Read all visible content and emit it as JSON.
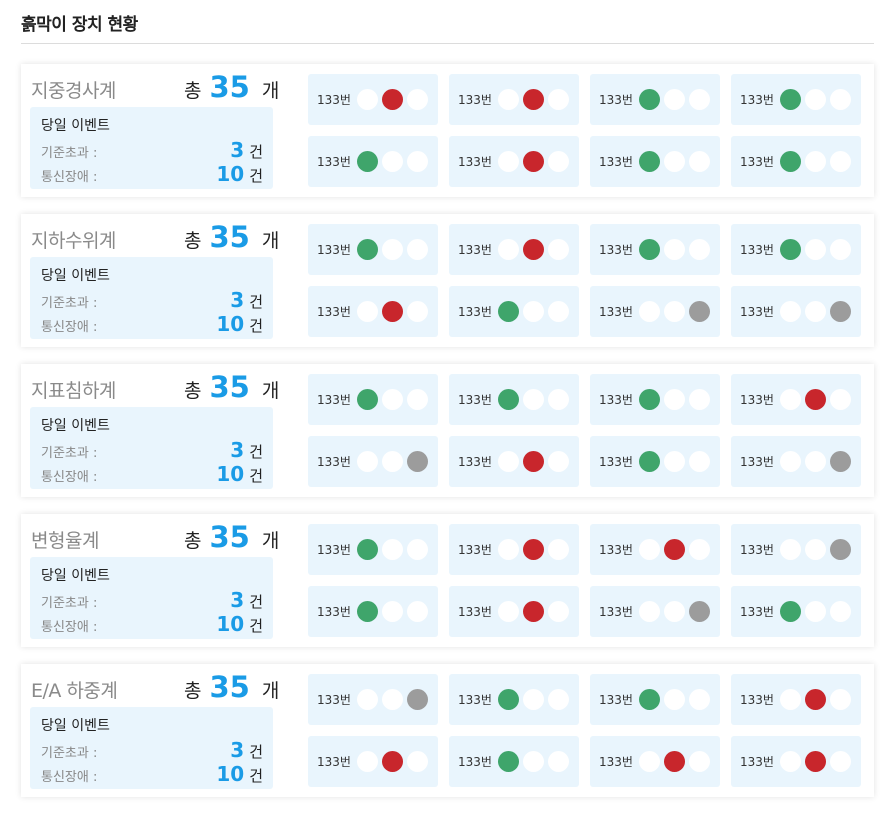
{
  "page_title": "흙막이 장치 현황",
  "status_colors": {
    "green": "#3fa56b",
    "red": "#c8262c",
    "gray": "#9c9c9c",
    "accent": "#1a9be6"
  },
  "groups": [
    {
      "name": "지중경사계",
      "total_label": "총",
      "total": "35",
      "unit": "개",
      "events": {
        "title": "당일 이벤트",
        "exceed_label": "기준초과 :",
        "exceed": "3",
        "fault_label": "통신장애 :",
        "fault": "10",
        "count_unit": "건"
      },
      "devices": [
        {
          "label": "133번",
          "lights": [
            "off",
            "red",
            "off"
          ]
        },
        {
          "label": "133번",
          "lights": [
            "off",
            "red",
            "off"
          ]
        },
        {
          "label": "133번",
          "lights": [
            "green",
            "off",
            "off"
          ]
        },
        {
          "label": "133번",
          "lights": [
            "green",
            "off",
            "off"
          ]
        },
        {
          "label": "133번",
          "lights": [
            "green",
            "off",
            "off"
          ]
        },
        {
          "label": "133번",
          "lights": [
            "off",
            "red",
            "off"
          ]
        },
        {
          "label": "133번",
          "lights": [
            "green",
            "off",
            "off"
          ]
        },
        {
          "label": "133번",
          "lights": [
            "green",
            "off",
            "off"
          ]
        }
      ]
    },
    {
      "name": "지하수위계",
      "total_label": "총",
      "total": "35",
      "unit": "개",
      "events": {
        "title": "당일 이벤트",
        "exceed_label": "기준초과 :",
        "exceed": "3",
        "fault_label": "통신장애 :",
        "fault": "10",
        "count_unit": "건"
      },
      "devices": [
        {
          "label": "133번",
          "lights": [
            "green",
            "off",
            "off"
          ]
        },
        {
          "label": "133번",
          "lights": [
            "off",
            "red",
            "off"
          ]
        },
        {
          "label": "133번",
          "lights": [
            "green",
            "off",
            "off"
          ]
        },
        {
          "label": "133번",
          "lights": [
            "green",
            "off",
            "off"
          ]
        },
        {
          "label": "133번",
          "lights": [
            "off",
            "red",
            "off"
          ]
        },
        {
          "label": "133번",
          "lights": [
            "green",
            "off",
            "off"
          ]
        },
        {
          "label": "133번",
          "lights": [
            "off",
            "off",
            "gray"
          ]
        },
        {
          "label": "133번",
          "lights": [
            "off",
            "off",
            "gray"
          ]
        }
      ]
    },
    {
      "name": "지표침하계",
      "total_label": "총",
      "total": "35",
      "unit": "개",
      "events": {
        "title": "당일 이벤트",
        "exceed_label": "기준초과 :",
        "exceed": "3",
        "fault_label": "통신장애 :",
        "fault": "10",
        "count_unit": "건"
      },
      "devices": [
        {
          "label": "133번",
          "lights": [
            "green",
            "off",
            "off"
          ]
        },
        {
          "label": "133번",
          "lights": [
            "green",
            "off",
            "off"
          ]
        },
        {
          "label": "133번",
          "lights": [
            "green",
            "off",
            "off"
          ]
        },
        {
          "label": "133번",
          "lights": [
            "off",
            "red",
            "off"
          ]
        },
        {
          "label": "133번",
          "lights": [
            "off",
            "off",
            "gray"
          ]
        },
        {
          "label": "133번",
          "lights": [
            "off",
            "red",
            "off"
          ]
        },
        {
          "label": "133번",
          "lights": [
            "green",
            "off",
            "off"
          ]
        },
        {
          "label": "133번",
          "lights": [
            "off",
            "off",
            "gray"
          ]
        }
      ]
    },
    {
      "name": "변형율계",
      "total_label": "총",
      "total": "35",
      "unit": "개",
      "events": {
        "title": "당일 이벤트",
        "exceed_label": "기준초과 :",
        "exceed": "3",
        "fault_label": "통신장애 :",
        "fault": "10",
        "count_unit": "건"
      },
      "devices": [
        {
          "label": "133번",
          "lights": [
            "green",
            "off",
            "off"
          ]
        },
        {
          "label": "133번",
          "lights": [
            "off",
            "red",
            "off"
          ]
        },
        {
          "label": "133번",
          "lights": [
            "off",
            "red",
            "off"
          ]
        },
        {
          "label": "133번",
          "lights": [
            "off",
            "off",
            "gray"
          ]
        },
        {
          "label": "133번",
          "lights": [
            "green",
            "off",
            "off"
          ]
        },
        {
          "label": "133번",
          "lights": [
            "off",
            "red",
            "off"
          ]
        },
        {
          "label": "133번",
          "lights": [
            "off",
            "off",
            "gray"
          ]
        },
        {
          "label": "133번",
          "lights": [
            "green",
            "off",
            "off"
          ]
        }
      ]
    },
    {
      "name": "E/A 하중계",
      "total_label": "총",
      "total": "35",
      "unit": "개",
      "events": {
        "title": "당일 이벤트",
        "exceed_label": "기준초과 :",
        "exceed": "3",
        "fault_label": "통신장애 :",
        "fault": "10",
        "count_unit": "건"
      },
      "devices": [
        {
          "label": "133번",
          "lights": [
            "off",
            "off",
            "gray"
          ]
        },
        {
          "label": "133번",
          "lights": [
            "green",
            "off",
            "off"
          ]
        },
        {
          "label": "133번",
          "lights": [
            "green",
            "off",
            "off"
          ]
        },
        {
          "label": "133번",
          "lights": [
            "off",
            "red",
            "off"
          ]
        },
        {
          "label": "133번",
          "lights": [
            "off",
            "red",
            "off"
          ]
        },
        {
          "label": "133번",
          "lights": [
            "green",
            "off",
            "off"
          ]
        },
        {
          "label": "133번",
          "lights": [
            "off",
            "red",
            "off"
          ]
        },
        {
          "label": "133번",
          "lights": [
            "off",
            "red",
            "off"
          ]
        }
      ]
    }
  ]
}
